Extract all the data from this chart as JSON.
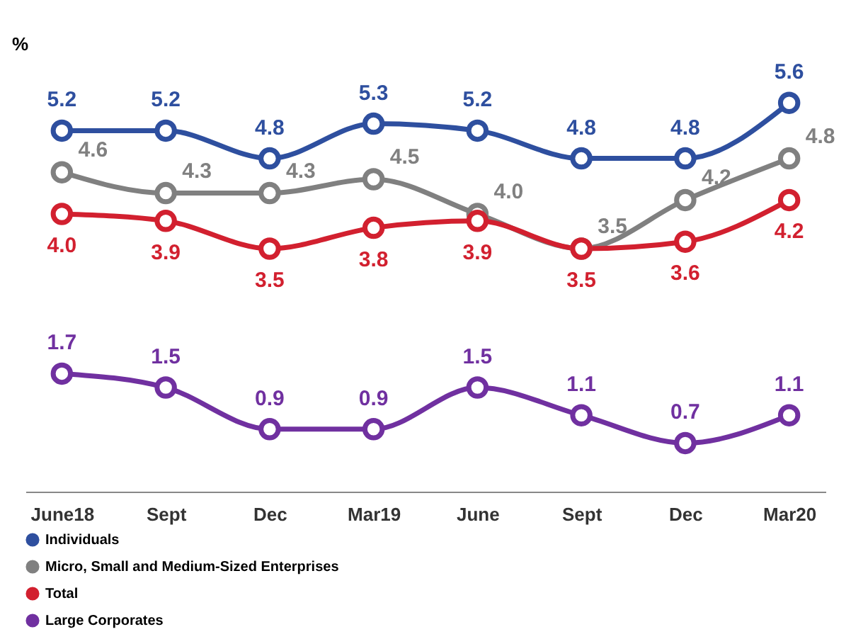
{
  "chart_data": {
    "type": "line",
    "ylabel": "%",
    "categories": [
      "June18",
      "Sept",
      "Dec",
      "Mar19",
      "June",
      "Sept",
      "Dec",
      "Mar20"
    ],
    "series": [
      {
        "name": "Individuals",
        "color": "#2e4f9f",
        "values": [
          5.2,
          5.2,
          4.8,
          5.3,
          5.2,
          4.8,
          4.8,
          5.6
        ],
        "value_labels": [
          "5.2",
          "5.2",
          "4.8",
          "5.3",
          "5.2",
          "4.8",
          "4.8",
          "5.6"
        ]
      },
      {
        "name": "Micro, Small and Medium-Sized Enterprises",
        "color": "#808080",
        "values": [
          4.6,
          4.3,
          4.3,
          4.5,
          4.0,
          3.5,
          4.2,
          4.8
        ],
        "value_labels": [
          "4.6",
          "4.3",
          "4.3",
          "4.5",
          "4.0",
          "3.5",
          "4.2",
          "4.8"
        ]
      },
      {
        "name": "Total",
        "color": "#d2202f",
        "values": [
          4.0,
          3.9,
          3.5,
          3.8,
          3.9,
          3.5,
          3.6,
          4.2
        ],
        "value_labels": [
          "4.0",
          "3.9",
          "3.5",
          "3.8",
          "3.9",
          "3.5",
          "3.6",
          "4.2"
        ]
      },
      {
        "name": "Large Corporates",
        "color": "#7030a0",
        "values": [
          1.7,
          1.5,
          0.9,
          0.9,
          1.5,
          1.1,
          0.7,
          1.1
        ],
        "value_labels": [
          "1.7",
          "1.5",
          "0.9",
          "0.9",
          "1.5",
          "1.1",
          "0.7",
          "1.1"
        ]
      }
    ],
    "grid": false,
    "legend": "bottom",
    "marker": "circle",
    "line_style": "solid",
    "tick_labels": "x"
  }
}
